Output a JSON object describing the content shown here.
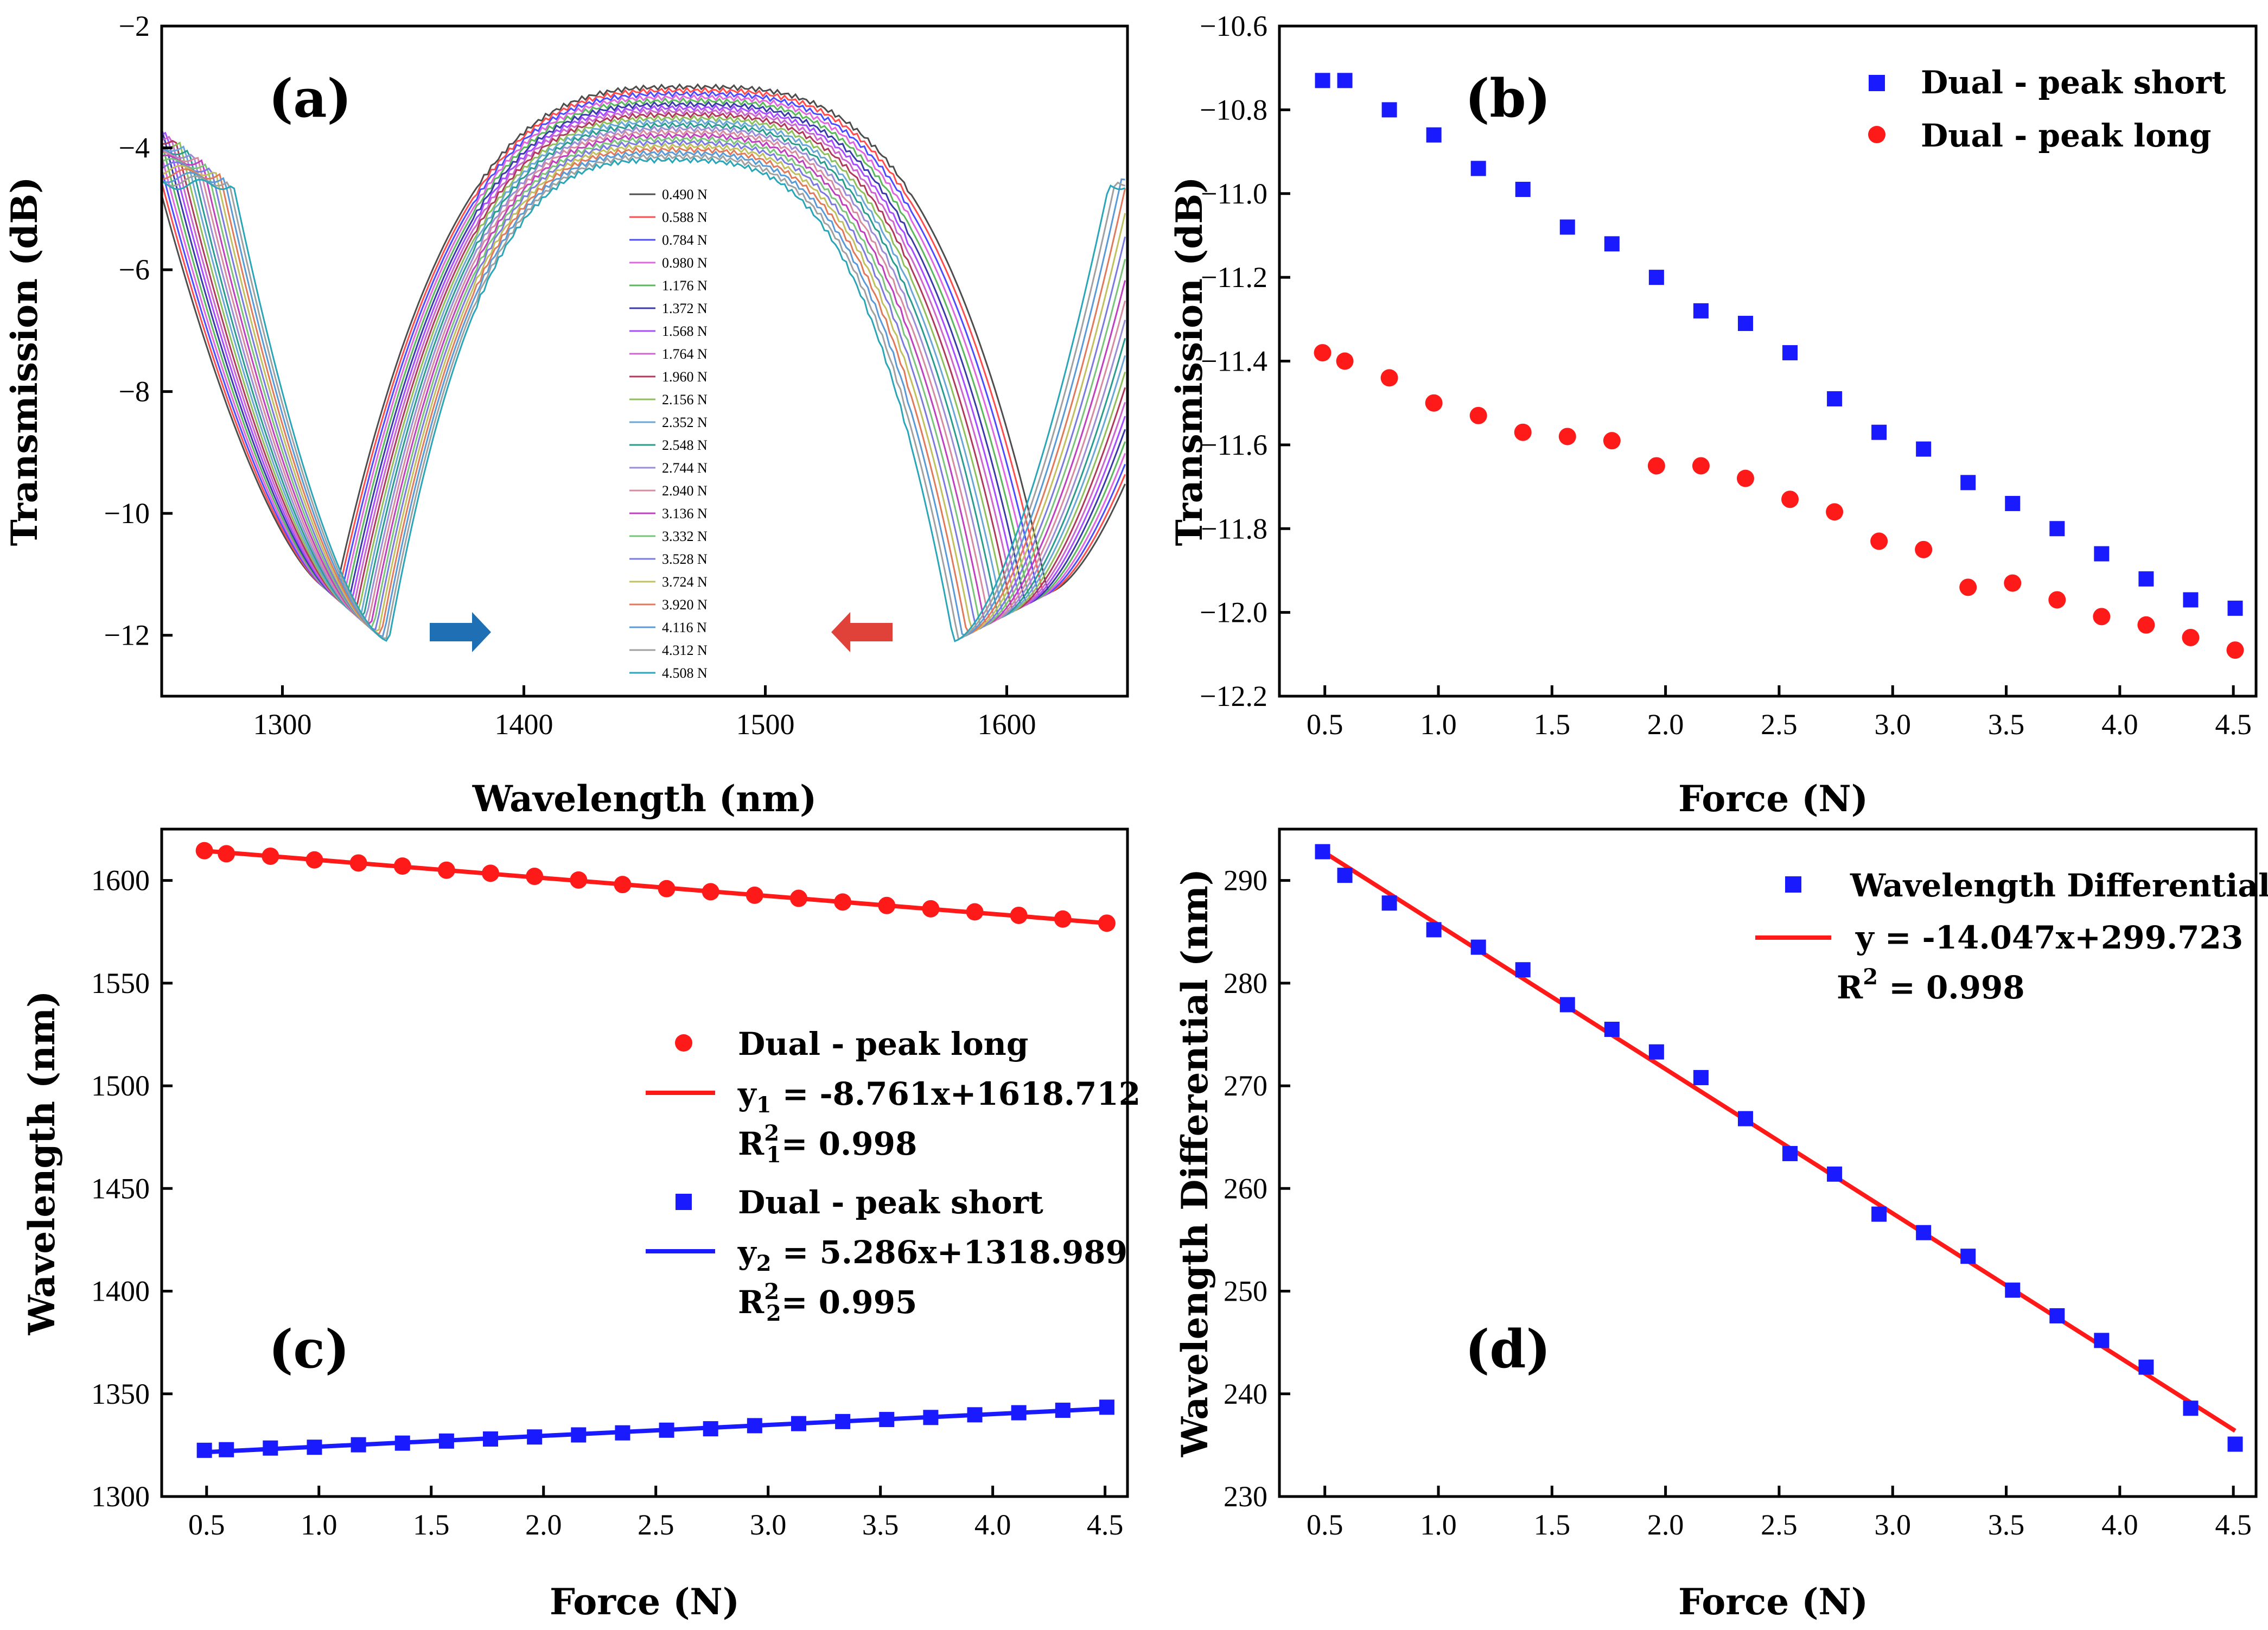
{
  "colors": {
    "red": "#ff1a1a",
    "blue": "#1a1aff",
    "arrow_blue": "#1f6fb4",
    "arrow_red": "#e0423a"
  },
  "chart_data": [
    {
      "id": "a",
      "panel_label": "(a)",
      "type": "line",
      "xlabel": "Wavelength (nm)",
      "ylabel": "Transmission (dB)",
      "xlim": [
        1250,
        1650
      ],
      "ylim": [
        -13,
        -2
      ],
      "xticks": [
        "1300",
        "1400",
        "1500",
        "1600"
      ],
      "yticks": [
        "-2",
        "-4",
        "-6",
        "-8",
        "-10",
        "-12"
      ],
      "series_model": {
        "dip1_center_first": 1322,
        "dip1_center_last": 1344,
        "dip2_center_first": 1617,
        "dip2_center_last": 1578,
        "dip_min_first": -11.3,
        "dip_min_last": -12.1,
        "plateau_first": -3.0,
        "plateau_last": -4.2
      },
      "legend": [
        {
          "label": "0.490 N",
          "color": "#4d4d4d"
        },
        {
          "label": "0.588 N",
          "color": "#ff4d4d"
        },
        {
          "label": "0.784 N",
          "color": "#4d4dff"
        },
        {
          "label": "0.980 N",
          "color": "#e066e0"
        },
        {
          "label": "1.176 N",
          "color": "#5cb85c"
        },
        {
          "label": "1.372 N",
          "color": "#3a3aaa"
        },
        {
          "label": "1.568 N",
          "color": "#a64dff"
        },
        {
          "label": "1.764 N",
          "color": "#cc66cc"
        },
        {
          "label": "1.960 N",
          "color": "#b03a5c"
        },
        {
          "label": "2.156 N",
          "color": "#8fbf5a"
        },
        {
          "label": "2.352 N",
          "color": "#6aa6d6"
        },
        {
          "label": "2.548 N",
          "color": "#2a9d8f"
        },
        {
          "label": "2.744 N",
          "color": "#9a8cd6"
        },
        {
          "label": "2.940 N",
          "color": "#d68ca0"
        },
        {
          "label": "3.136 N",
          "color": "#c040c0"
        },
        {
          "label": "3.332 N",
          "color": "#7ac47a"
        },
        {
          "label": "3.528 N",
          "color": "#7a7ae0"
        },
        {
          "label": "3.724 N",
          "color": "#c0c060"
        },
        {
          "label": "3.920 N",
          "color": "#e07a5a"
        },
        {
          "label": "4.116 N",
          "color": "#5a9ad6"
        },
        {
          "label": "4.312 N",
          "color": "#a0a0a0"
        },
        {
          "label": "4.508 N",
          "color": "#2aa6b8"
        }
      ]
    },
    {
      "id": "b",
      "panel_label": "(b)",
      "type": "scatter",
      "xlabel": "Force (N)",
      "ylabel": "Transmission (dB)",
      "xlim": [
        0.3,
        4.6
      ],
      "ylim": [
        -12.2,
        -10.6
      ],
      "xticks": [
        "0.5",
        "1.0",
        "1.5",
        "2.0",
        "2.5",
        "3.0",
        "3.5",
        "4.0",
        "4.5"
      ],
      "yticks": [
        "-10.6",
        "-10.8",
        "-11.0",
        "-11.2",
        "-11.4",
        "-11.6",
        "-11.8",
        "-12.0",
        "-12.2"
      ],
      "x": [
        0.49,
        0.588,
        0.784,
        0.98,
        1.176,
        1.372,
        1.568,
        1.764,
        1.96,
        2.156,
        2.352,
        2.548,
        2.744,
        2.94,
        3.136,
        3.332,
        3.528,
        3.724,
        3.92,
        4.116,
        4.312,
        4.508
      ],
      "series": [
        {
          "name": "Dual - peak short",
          "marker": "square",
          "color": "#1a1aff",
          "values": [
            -10.73,
            -10.73,
            -10.8,
            -10.86,
            -10.94,
            -10.99,
            -11.08,
            -11.12,
            -11.2,
            -11.28,
            -11.31,
            -11.38,
            -11.49,
            -11.57,
            -11.61,
            -11.69,
            -11.74,
            -11.8,
            -11.86,
            -11.92,
            -11.97,
            -11.99
          ]
        },
        {
          "name": "Dual - peak long",
          "marker": "circle",
          "color": "#ff1a1a",
          "values": [
            -11.38,
            -11.4,
            -11.44,
            -11.5,
            -11.53,
            -11.57,
            -11.58,
            -11.59,
            -11.65,
            -11.65,
            -11.68,
            -11.73,
            -11.76,
            -11.83,
            -11.85,
            -11.94,
            -11.93,
            -11.97,
            -12.01,
            -12.03,
            -12.06,
            -12.09
          ]
        }
      ]
    },
    {
      "id": "c",
      "panel_label": "(c)",
      "type": "scatter",
      "xlabel": "Force (N)",
      "ylabel": "Wavelength (nm)",
      "xlim": [
        0.3,
        4.6
      ],
      "ylim": [
        1300,
        1625
      ],
      "xticks": [
        "0.5",
        "1.0",
        "1.5",
        "2.0",
        "2.5",
        "3.0",
        "3.5",
        "4.0",
        "4.5"
      ],
      "yticks": [
        "1300",
        "1350",
        "1400",
        "1450",
        "1500",
        "1550",
        "1600"
      ],
      "x": [
        0.49,
        0.588,
        0.784,
        0.98,
        1.176,
        1.372,
        1.568,
        1.764,
        1.96,
        2.156,
        2.352,
        2.548,
        2.744,
        2.94,
        3.136,
        3.332,
        3.528,
        3.724,
        3.92,
        4.116,
        4.312,
        4.508
      ],
      "series": [
        {
          "name": "Dual - peak long",
          "marker": "circle",
          "color": "#ff1a1a",
          "values": [
            1614.5,
            1613.0,
            1611.8,
            1610.0,
            1608.5,
            1607.0,
            1605.0,
            1603.5,
            1602.0,
            1600.2,
            1598.0,
            1596.0,
            1594.5,
            1592.8,
            1591.3,
            1589.5,
            1587.8,
            1586.2,
            1584.7,
            1583.0,
            1581.2,
            1579.2
          ],
          "fit": {
            "slope": -8.761,
            "intercept": 1618.712,
            "equation_main": "y",
            "equation_sub": "1",
            "equation_rest": " = -8.761x+1618.712",
            "r2_main": "R",
            "r2_sup": "2",
            "r2_sub": "1",
            "r2_rest": "= 0.998"
          }
        },
        {
          "name": "Dual - peak short",
          "marker": "square",
          "color": "#1a1aff",
          "values": [
            1322.5,
            1322.8,
            1323.6,
            1324.0,
            1325.2,
            1326.0,
            1327.0,
            1328.0,
            1329.0,
            1330.0,
            1331.0,
            1332.3,
            1333.0,
            1334.5,
            1335.5,
            1336.5,
            1337.5,
            1338.5,
            1339.8,
            1340.8,
            1342.0,
            1343.5
          ],
          "fit": {
            "slope": 5.286,
            "intercept": 1318.989,
            "equation_main": "y",
            "equation_sub": "2",
            "equation_rest": " = 5.286x+1318.989",
            "r2_main": "R",
            "r2_sup": "2",
            "r2_sub": "2",
            "r2_rest": "= 0.995"
          }
        }
      ]
    },
    {
      "id": "d",
      "panel_label": "(d)",
      "type": "scatter",
      "xlabel": "Force (N)",
      "ylabel": "Wavelength Differential (nm)",
      "xlim": [
        0.3,
        4.6
      ],
      "ylim": [
        230,
        295
      ],
      "xticks": [
        "0.5",
        "1.0",
        "1.5",
        "2.0",
        "2.5",
        "3.0",
        "3.5",
        "4.0",
        "4.5"
      ],
      "yticks": [
        "230",
        "240",
        "250",
        "260",
        "270",
        "280",
        "290"
      ],
      "x": [
        0.49,
        0.588,
        0.784,
        0.98,
        1.176,
        1.372,
        1.568,
        1.764,
        1.96,
        2.156,
        2.352,
        2.548,
        2.744,
        2.94,
        3.136,
        3.332,
        3.528,
        3.724,
        3.92,
        4.116,
        4.312,
        4.508
      ],
      "series": [
        {
          "name": "Wavelength Differential",
          "marker": "square",
          "color": "#1a1aff",
          "values": [
            292.8,
            290.5,
            287.8,
            285.2,
            283.5,
            281.3,
            277.9,
            275.5,
            273.3,
            270.8,
            266.8,
            263.4,
            261.4,
            257.5,
            255.7,
            253.4,
            250.1,
            247.6,
            245.2,
            242.6,
            238.6,
            235.1
          ],
          "fit": {
            "slope": -14.047,
            "intercept": 299.723,
            "equation_main": "y  =  -14.047x+299.723",
            "r2_main": "R",
            "r2_sup": "2",
            "r2_rest": " = 0.998"
          }
        }
      ]
    }
  ]
}
